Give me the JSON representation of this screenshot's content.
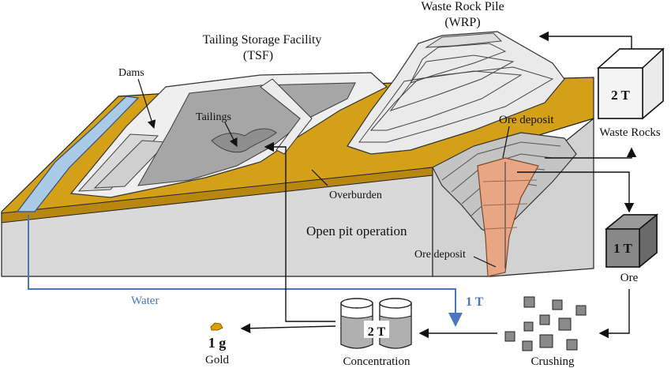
{
  "labels": {
    "waste_rock_pile": "Waste Rock Pile",
    "wrp": "(WRP)",
    "tsf_title": "Tailing Storage Facility",
    "tsf": "(TSF)",
    "dams": "Dams",
    "tailings": "Tailings",
    "ore_deposit_top": "Ore deposit",
    "ore_deposit_bottom": "Ore deposit",
    "overburden": "Overburden",
    "open_pit": "Open pit operation",
    "water": "Water",
    "one_t_flow": "1 T",
    "gold_amount": "1 g",
    "gold": "Gold",
    "concentration_amount": "2 T",
    "concentration": "Concentration",
    "crushing": "Crushing",
    "waste_amount": "2 T",
    "waste_rocks": "Waste Rocks",
    "ore_amount": "1 T",
    "ore": "Ore"
  },
  "colors": {
    "overburden": "#d4a017",
    "water": "#4a76c0",
    "ore": "#e8a684",
    "ground": "#d6d6d6",
    "tailings": "#a6a6a6"
  }
}
